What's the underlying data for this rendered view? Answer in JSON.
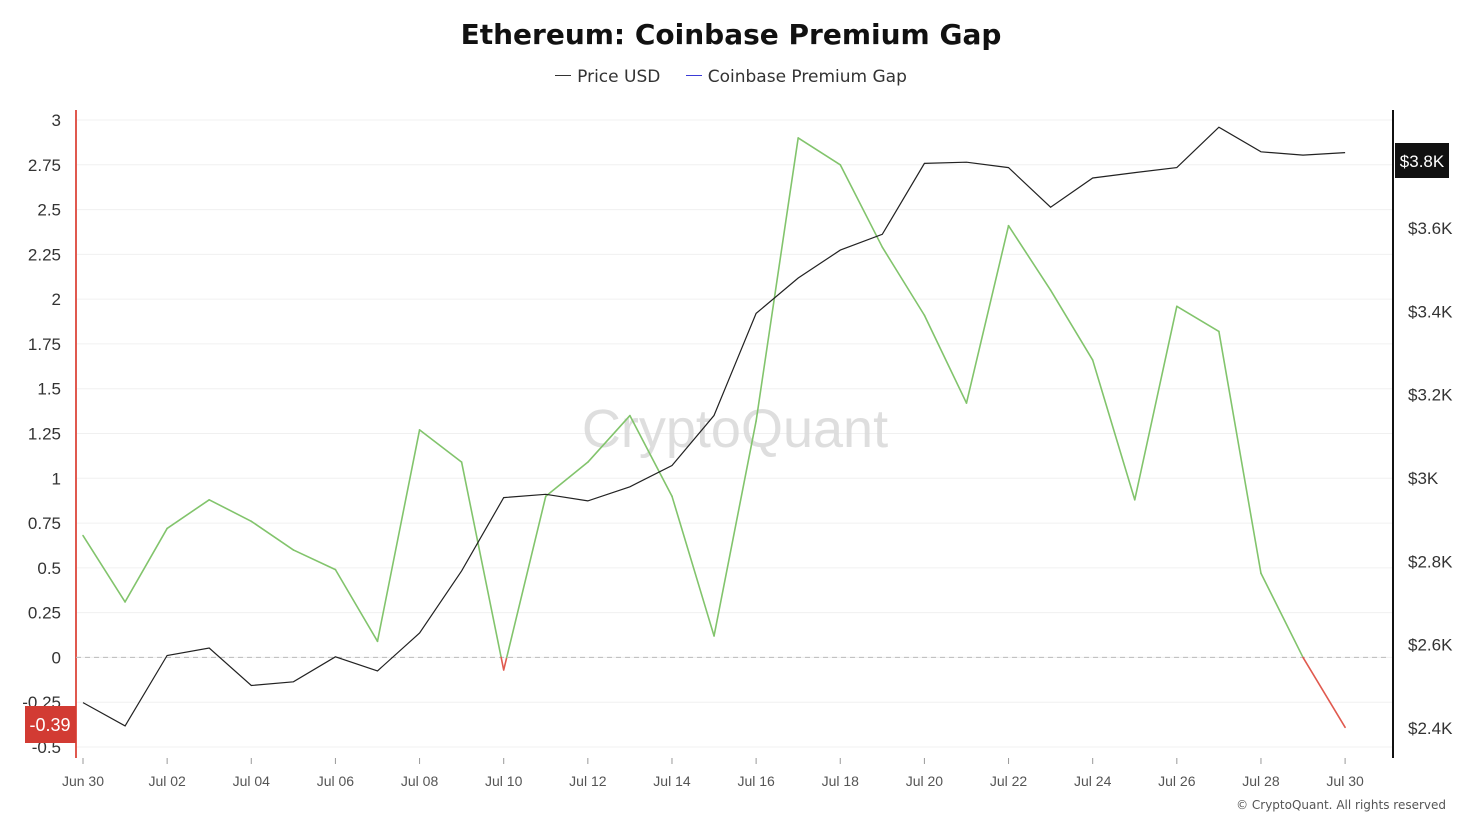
{
  "chart_data": {
    "type": "line",
    "title": "Ethereum: Coinbase Premium Gap",
    "watermark": "CryptoQuant",
    "footer": "© CryptoQuant. All rights reserved",
    "legend": [
      {
        "name": "Price USD",
        "color": "#333333"
      },
      {
        "name": "Coinbase Premium Gap",
        "color": "#3b3bd6"
      }
    ],
    "legend_position": "top-center",
    "x": [
      "Jun 30",
      "Jul 01",
      "Jul 02",
      "Jul 03",
      "Jul 04",
      "Jul 05",
      "Jul 06",
      "Jul 07",
      "Jul 08",
      "Jul 09",
      "Jul 10",
      "Jul 11",
      "Jul 12",
      "Jul 13",
      "Jul 14",
      "Jul 15",
      "Jul 16",
      "Jul 17",
      "Jul 18",
      "Jul 19",
      "Jul 20",
      "Jul 21",
      "Jul 22",
      "Jul 23",
      "Jul 24",
      "Jul 25",
      "Jul 26",
      "Jul 27",
      "Jul 28",
      "Jul 29",
      "Jul 30"
    ],
    "x_tick_labels": [
      "Jun 30",
      "Jul 02",
      "Jul 04",
      "Jul 06",
      "Jul 08",
      "Jul 10",
      "Jul 12",
      "Jul 14",
      "Jul 16",
      "Jul 18",
      "Jul 20",
      "Jul 22",
      "Jul 24",
      "Jul 26",
      "Jul 28",
      "Jul 30"
    ],
    "left_axis": {
      "ylim": [
        -0.5,
        3
      ],
      "ticks": [
        3,
        2.75,
        2.5,
        2.25,
        2,
        1.75,
        1.5,
        1.25,
        1,
        0.75,
        0.5,
        0.25,
        0,
        -0.25,
        -0.5
      ],
      "tick_labels": [
        "3",
        "2.75",
        "2.5",
        "2.25",
        "2",
        "1.75",
        "1.5",
        "1.25",
        "1",
        "0.75",
        "0.5",
        "0.25",
        "0",
        "-0.25",
        "-0.5"
      ],
      "current_value_label": "-0.39",
      "current_value": -0.39
    },
    "right_axis": {
      "ylim": [
        2350,
        3980
      ],
      "ticks": [
        3600,
        3400,
        3200,
        3000,
        2800,
        2600,
        2400
      ],
      "tick_labels": [
        "$3.6K",
        "$3.4K",
        "$3.2K",
        "$3K",
        "$2.8K",
        "$2.6K",
        "$2.4K"
      ],
      "current_value_label": "$3.8K",
      "current_value": 3780
    },
    "series": [
      {
        "name": "Coinbase Premium Gap",
        "axis": "left",
        "positive_color": "#82c46c",
        "negative_color": "#e05a4f",
        "values": [
          0.68,
          0.31,
          0.72,
          0.88,
          0.76,
          0.6,
          0.49,
          0.09,
          1.27,
          1.09,
          -0.07,
          0.9,
          1.09,
          1.35,
          0.9,
          0.12,
          1.32,
          2.9,
          2.75,
          2.29,
          1.91,
          1.42,
          2.41,
          2.05,
          1.66,
          0.88,
          1.96,
          1.82,
          0.47,
          0,
          -0.39
        ]
      },
      {
        "name": "Price USD",
        "axis": "right",
        "color": "#222222",
        "values": [
          2461,
          2405,
          2574,
          2592,
          2502,
          2511,
          2571,
          2537,
          2628,
          2777,
          2953,
          2961,
          2945,
          2979,
          3030,
          3150,
          3395,
          3480,
          3547,
          3585,
          3755,
          3758,
          3745,
          3650,
          3720,
          3733,
          3745,
          3842,
          3783,
          3775,
          3781
        ]
      }
    ],
    "grid": true,
    "zero_line": true
  }
}
